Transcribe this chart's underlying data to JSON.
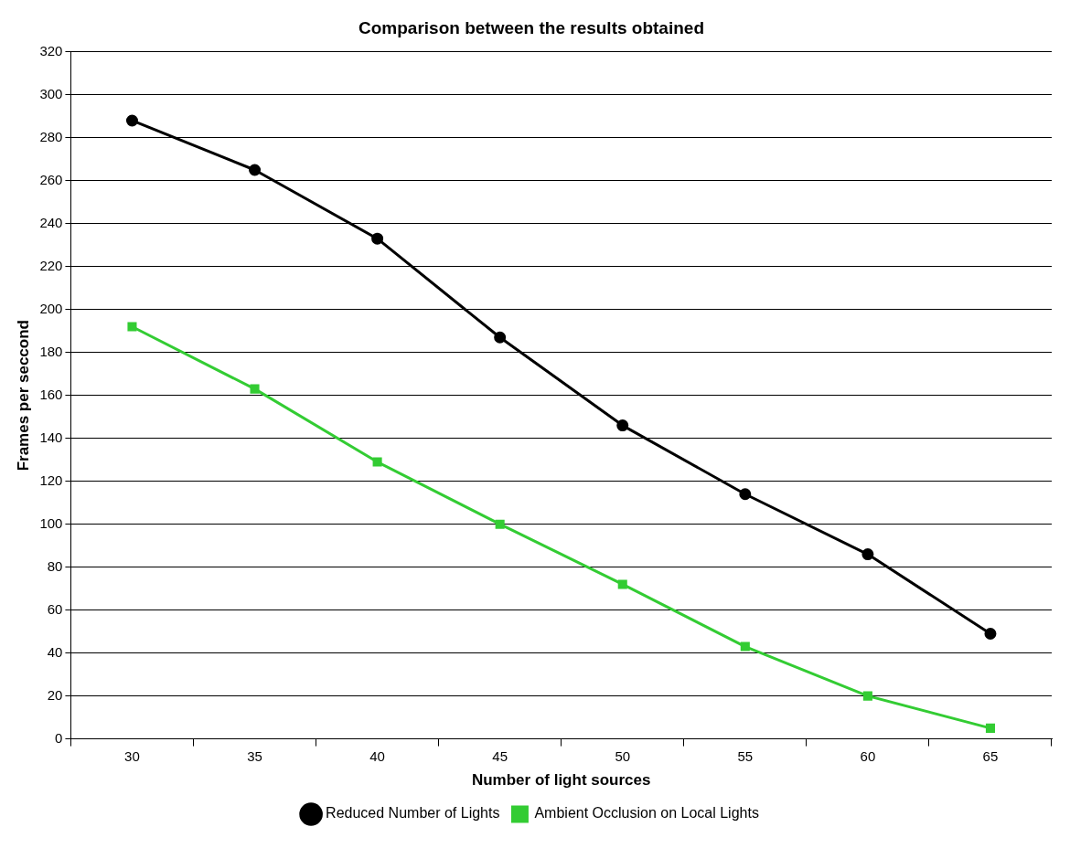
{
  "chart_data": {
    "type": "line",
    "title": "Comparison between the results obtained",
    "xlabel": "Number of light sources",
    "ylabel": "Frames per seccond",
    "categories": [
      "30",
      "35",
      "40",
      "45",
      "50",
      "55",
      "60",
      "65"
    ],
    "series": [
      {
        "name": "Reduced Number of Lights",
        "color": "#000000",
        "marker": "circle",
        "values": [
          288,
          265,
          233,
          187,
          146,
          114,
          86,
          49
        ]
      },
      {
        "name": "Ambient Occlusion on Local Lights",
        "color": "#33cc33",
        "marker": "square",
        "values": [
          192,
          163,
          129,
          100,
          72,
          43,
          20,
          5
        ]
      }
    ],
    "ylim": [
      0,
      320
    ],
    "yticks": [
      0,
      20,
      40,
      60,
      80,
      100,
      120,
      140,
      160,
      180,
      200,
      220,
      240,
      260,
      280,
      300,
      320
    ],
    "grid": "y",
    "legend": "bottom",
    "line_style": "solid"
  }
}
